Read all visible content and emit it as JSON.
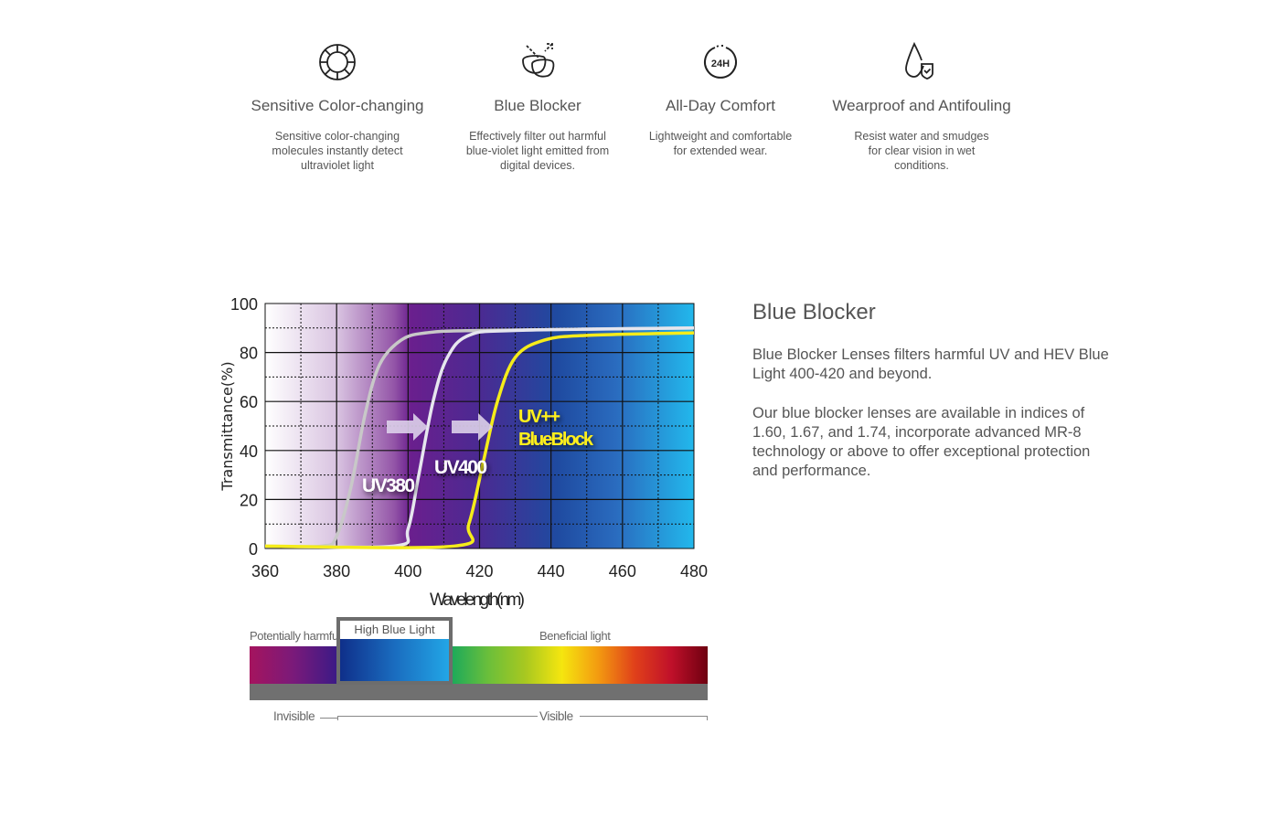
{
  "features": [
    {
      "icon": "color-wheel-icon",
      "title": "Sensitive Color-changing",
      "desc": "Sensitive color-changing molecules instantly detect ultraviolet light"
    },
    {
      "icon": "blue-blocker-lens-icon",
      "title": "Blue Blocker",
      "desc": "Effectively filter out harmful blue-violet light emitted from digital devices."
    },
    {
      "icon": "24h-clock-icon",
      "title": "All-Day Comfort",
      "desc": "Lightweight and comfortable for extended wear."
    },
    {
      "icon": "water-drop-shield-icon",
      "title": "Wearproof and Antifouling",
      "desc": "Resist water and smudges for clear vision in wet conditions."
    }
  ],
  "icon_text_24h": "24H",
  "chart_data": {
    "type": "line",
    "xlabel": "Wavelength(nm)",
    "ylabel": "Transmittance(%)",
    "xlim": [
      360,
      480
    ],
    "ylim": [
      0,
      100
    ],
    "xticks": [
      360,
      380,
      400,
      420,
      440,
      460,
      480
    ],
    "yticks": [
      0,
      20,
      40,
      60,
      80,
      100
    ],
    "grid": true,
    "series": [
      {
        "name": "UV380",
        "color": "#c8c8c8",
        "points": [
          [
            360,
            1
          ],
          [
            376,
            1
          ],
          [
            380,
            5
          ],
          [
            384,
            25
          ],
          [
            388,
            55
          ],
          [
            392,
            75
          ],
          [
            398,
            85
          ],
          [
            405,
            88
          ],
          [
            420,
            89
          ],
          [
            480,
            90
          ]
        ]
      },
      {
        "name": "UV400",
        "color": "#e6e6ee",
        "points": [
          [
            360,
            1
          ],
          [
            396,
            1
          ],
          [
            400,
            8
          ],
          [
            403,
            30
          ],
          [
            407,
            60
          ],
          [
            411,
            78
          ],
          [
            417,
            87
          ],
          [
            430,
            89
          ],
          [
            480,
            90
          ]
        ]
      },
      {
        "name": "UV++ BlueBlock",
        "color": "#f5ec1a",
        "points": [
          [
            360,
            1
          ],
          [
            413,
            1
          ],
          [
            417,
            10
          ],
          [
            421,
            35
          ],
          [
            425,
            60
          ],
          [
            430,
            78
          ],
          [
            438,
            85
          ],
          [
            450,
            87
          ],
          [
            480,
            88
          ]
        ]
      }
    ],
    "labels": {
      "uv380": "UV380",
      "uv400": "UV400",
      "uvpp1": "UV++",
      "uvpp2": "BlueBlock"
    }
  },
  "spectrum": {
    "harmful": "Potentially harmful",
    "high_blue": "High Blue Light",
    "beneficial": "Beneficial light",
    "invisible": "Invisible",
    "visible": "Visible"
  },
  "side": {
    "title": "Blue Blocker",
    "p1": "Blue Blocker Lenses filters harmful UV and HEV Blue Light 400-420 and beyond.",
    "p2": "Our blue blocker lenses are available in indices of 1.60, 1.67, and 1.74, incorporate advanced MR-8 technology or above to offer exceptional protection and performance."
  }
}
